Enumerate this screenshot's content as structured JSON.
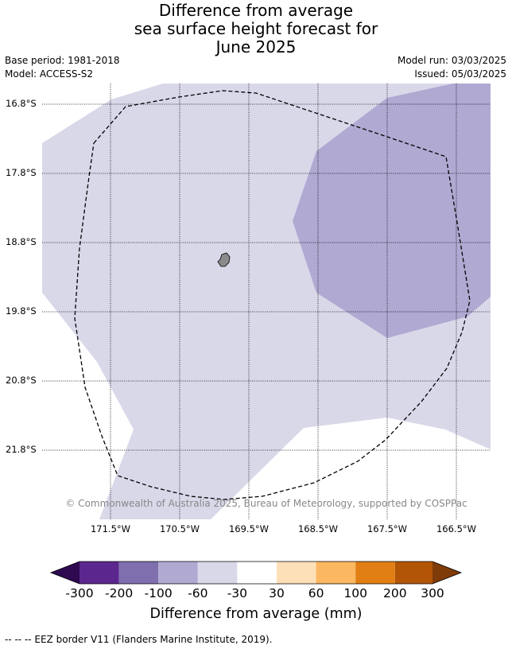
{
  "title": {
    "line1": "Difference from average",
    "line2": "sea surface height forecast for",
    "line3": "June 2025"
  },
  "meta": {
    "base_period": "Base period: 1981-2018",
    "model": "Model: ACCESS-S2",
    "model_run": "Model run: 03/03/2025",
    "issued": "Issued: 05/03/2025"
  },
  "map": {
    "lat_ticks": [
      "16.8°S",
      "17.8°S",
      "18.8°S",
      "19.8°S",
      "20.8°S",
      "21.8°S"
    ],
    "lon_ticks": [
      "171.5°W",
      "170.5°W",
      "169.5°W",
      "168.5°W",
      "167.5°W",
      "166.5°W"
    ],
    "credit": "© Commonwealth of Australia 2025, Bureau of Meteorology, supported by COSPPac",
    "colors": {
      "band_minus60_minus30": "#d8d8e9",
      "band_minus100_minus60": "#b0a9d2",
      "island": "#8a8a8a",
      "eez_border": "#000000"
    }
  },
  "colorbar": {
    "labels": [
      "-300",
      "-200",
      "-100",
      "-60",
      "-30",
      "30",
      "60",
      "100",
      "200",
      "300"
    ],
    "colors": [
      "#2e0a50",
      "#5b278f",
      "#7f6fae",
      "#b0a9d2",
      "#d8d8e9",
      "#ffffff",
      "#fde0b8",
      "#fbb761",
      "#e17f15",
      "#b35507",
      "#7f3b08"
    ],
    "title": "Difference from average (mm)"
  },
  "footnote": "--  --  -- EEZ border V11 (Flanders Marine Institute, 2019)."
}
